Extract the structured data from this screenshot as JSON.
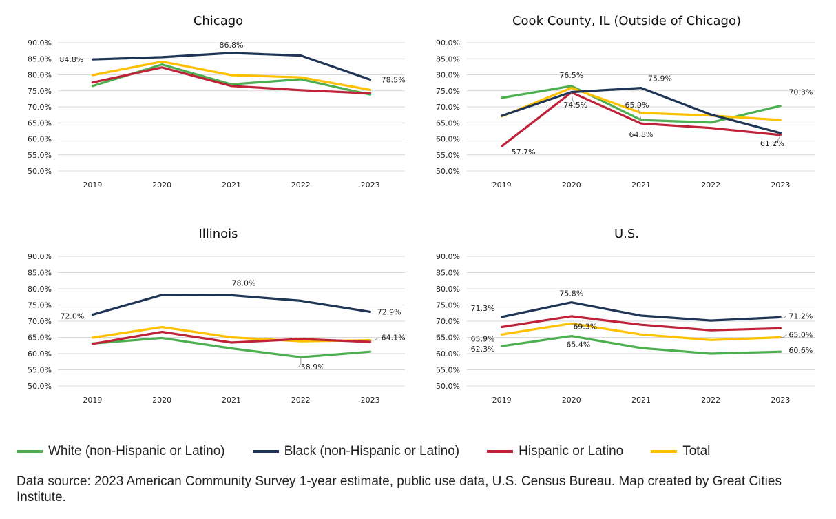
{
  "colors": {
    "white": "#4caf50",
    "black": "#1f3555",
    "hispanic": "#c0223a",
    "total": "#ffc000"
  },
  "legend": [
    {
      "key": "white",
      "label": "White (non-Hispanic or Latino)"
    },
    {
      "key": "black",
      "label": "Black (non-Hispanic or Latino)"
    },
    {
      "key": "hispanic",
      "label": "Hispanic or Latino"
    },
    {
      "key": "total",
      "label": "Total"
    }
  ],
  "source": "Data source: 2023 American Community Survey 1-year estimate, public use data, U.S. Census Bureau. Map created by Great Cities Institute.",
  "chart_data": [
    {
      "type": "line",
      "title": "Chicago",
      "categories": [
        "2019",
        "2020",
        "2021",
        "2022",
        "2023"
      ],
      "ylim": [
        50,
        90
      ],
      "yticks": [
        50,
        55,
        60,
        65,
        70,
        75,
        80,
        85,
        90
      ],
      "ytick_labels": [
        "50.0%",
        "55.0%",
        "60.0%",
        "65.0%",
        "70.0%",
        "75.0%",
        "80.0%",
        "85.0%",
        "90.0%"
      ],
      "series": [
        {
          "key": "white",
          "values": [
            76.5,
            83.2,
            77.0,
            78.6,
            73.8
          ]
        },
        {
          "key": "black",
          "values": [
            84.8,
            85.5,
            86.8,
            86.0,
            78.5
          ]
        },
        {
          "key": "hispanic",
          "values": [
            77.6,
            82.3,
            76.5,
            75.2,
            74.2
          ]
        },
        {
          "key": "total",
          "values": [
            79.9,
            84.1,
            79.9,
            79.2,
            75.3
          ]
        }
      ],
      "labels": [
        {
          "text": "84.8%",
          "series": "black",
          "index": 0
        },
        {
          "text": "86.8%",
          "series": "black",
          "index": 2
        },
        {
          "text": "78.5%",
          "series": "black",
          "index": 4
        }
      ]
    },
    {
      "type": "line",
      "title": "Cook County, IL (Outside of Chicago)",
      "categories": [
        "2019",
        "2020",
        "2021",
        "2022",
        "2023"
      ],
      "ylim": [
        50,
        90
      ],
      "yticks": [
        50,
        55,
        60,
        65,
        70,
        75,
        80,
        85,
        90
      ],
      "ytick_labels": [
        "50.0%",
        "55.0%",
        "60.0%",
        "65.0%",
        "70.0%",
        "75.0%",
        "80.0%",
        "85.0%",
        "90.0%"
      ],
      "series": [
        {
          "key": "white",
          "values": [
            72.8,
            76.5,
            65.9,
            65.1,
            70.3
          ]
        },
        {
          "key": "black",
          "values": [
            67.2,
            74.6,
            75.9,
            67.6,
            61.8
          ]
        },
        {
          "key": "hispanic",
          "values": [
            57.7,
            74.5,
            64.8,
            63.4,
            61.2
          ]
        },
        {
          "key": "total",
          "values": [
            67.0,
            75.9,
            68.1,
            67.3,
            65.9
          ]
        }
      ],
      "labels": [
        {
          "text": "76.5%",
          "series": "white",
          "index": 1
        },
        {
          "text": "74.5%",
          "series": "hispanic",
          "index": 1
        },
        {
          "text": "75.9%",
          "series": "black",
          "index": 2
        },
        {
          "text": "65.9%",
          "series": "white",
          "index": 2
        },
        {
          "text": "64.8%",
          "series": "hispanic",
          "index": 2
        },
        {
          "text": "57.7%",
          "series": "hispanic",
          "index": 0
        },
        {
          "text": "70.3%",
          "series": "white",
          "index": 4
        },
        {
          "text": "61.2%",
          "series": "hispanic",
          "index": 4
        }
      ]
    },
    {
      "type": "line",
      "title": "Illinois",
      "categories": [
        "2019",
        "2020",
        "2021",
        "2022",
        "2023"
      ],
      "ylim": [
        50,
        90
      ],
      "yticks": [
        50,
        55,
        60,
        65,
        70,
        75,
        80,
        85,
        90
      ],
      "ytick_labels": [
        "50.0%",
        "55.0%",
        "60.0%",
        "65.0%",
        "70.0%",
        "75.0%",
        "80.0%",
        "85.0%",
        "90.0%"
      ],
      "series": [
        {
          "key": "white",
          "values": [
            63.1,
            64.8,
            61.6,
            58.9,
            60.6
          ]
        },
        {
          "key": "black",
          "values": [
            72.0,
            78.1,
            78.0,
            76.3,
            72.9
          ]
        },
        {
          "key": "hispanic",
          "values": [
            63.0,
            66.7,
            63.4,
            64.5,
            63.6
          ]
        },
        {
          "key": "total",
          "values": [
            64.9,
            68.2,
            65.0,
            63.8,
            64.1
          ]
        }
      ],
      "labels": [
        {
          "text": "72.0%",
          "series": "black",
          "index": 0
        },
        {
          "text": "78.0%",
          "series": "black",
          "index": 2
        },
        {
          "text": "72.9%",
          "series": "black",
          "index": 4
        },
        {
          "text": "64.1%",
          "series": "total",
          "index": 4
        },
        {
          "text": "58.9%",
          "series": "white",
          "index": 3
        }
      ]
    },
    {
      "type": "line",
      "title": "U.S.",
      "categories": [
        "2019",
        "2020",
        "2021",
        "2022",
        "2023"
      ],
      "ylim": [
        50,
        90
      ],
      "yticks": [
        50,
        55,
        60,
        65,
        70,
        75,
        80,
        85,
        90
      ],
      "ytick_labels": [
        "50.0%",
        "55.0%",
        "60.0%",
        "65.0%",
        "70.0%",
        "75.0%",
        "80.0%",
        "85.0%",
        "90.0%"
      ],
      "series": [
        {
          "key": "white",
          "values": [
            62.3,
            65.4,
            61.7,
            60.0,
            60.6
          ]
        },
        {
          "key": "black",
          "values": [
            71.3,
            75.8,
            71.7,
            70.2,
            71.2
          ]
        },
        {
          "key": "hispanic",
          "values": [
            68.2,
            71.5,
            68.9,
            67.2,
            67.8
          ]
        },
        {
          "key": "total",
          "values": [
            65.9,
            69.3,
            65.9,
            64.2,
            65.0
          ]
        }
      ],
      "labels": [
        {
          "text": "71.3%",
          "series": "black",
          "index": 0
        },
        {
          "text": "65.9%",
          "series": "total",
          "index": 0
        },
        {
          "text": "62.3%",
          "series": "white",
          "index": 0
        },
        {
          "text": "75.8%",
          "series": "black",
          "index": 1
        },
        {
          "text": "69.3%",
          "series": "total",
          "index": 1
        },
        {
          "text": "65.4%",
          "series": "white",
          "index": 1
        },
        {
          "text": "71.2%",
          "series": "black",
          "index": 4
        },
        {
          "text": "65.0%",
          "series": "total",
          "index": 4
        },
        {
          "text": "60.6%",
          "series": "white",
          "index": 4
        }
      ]
    }
  ]
}
